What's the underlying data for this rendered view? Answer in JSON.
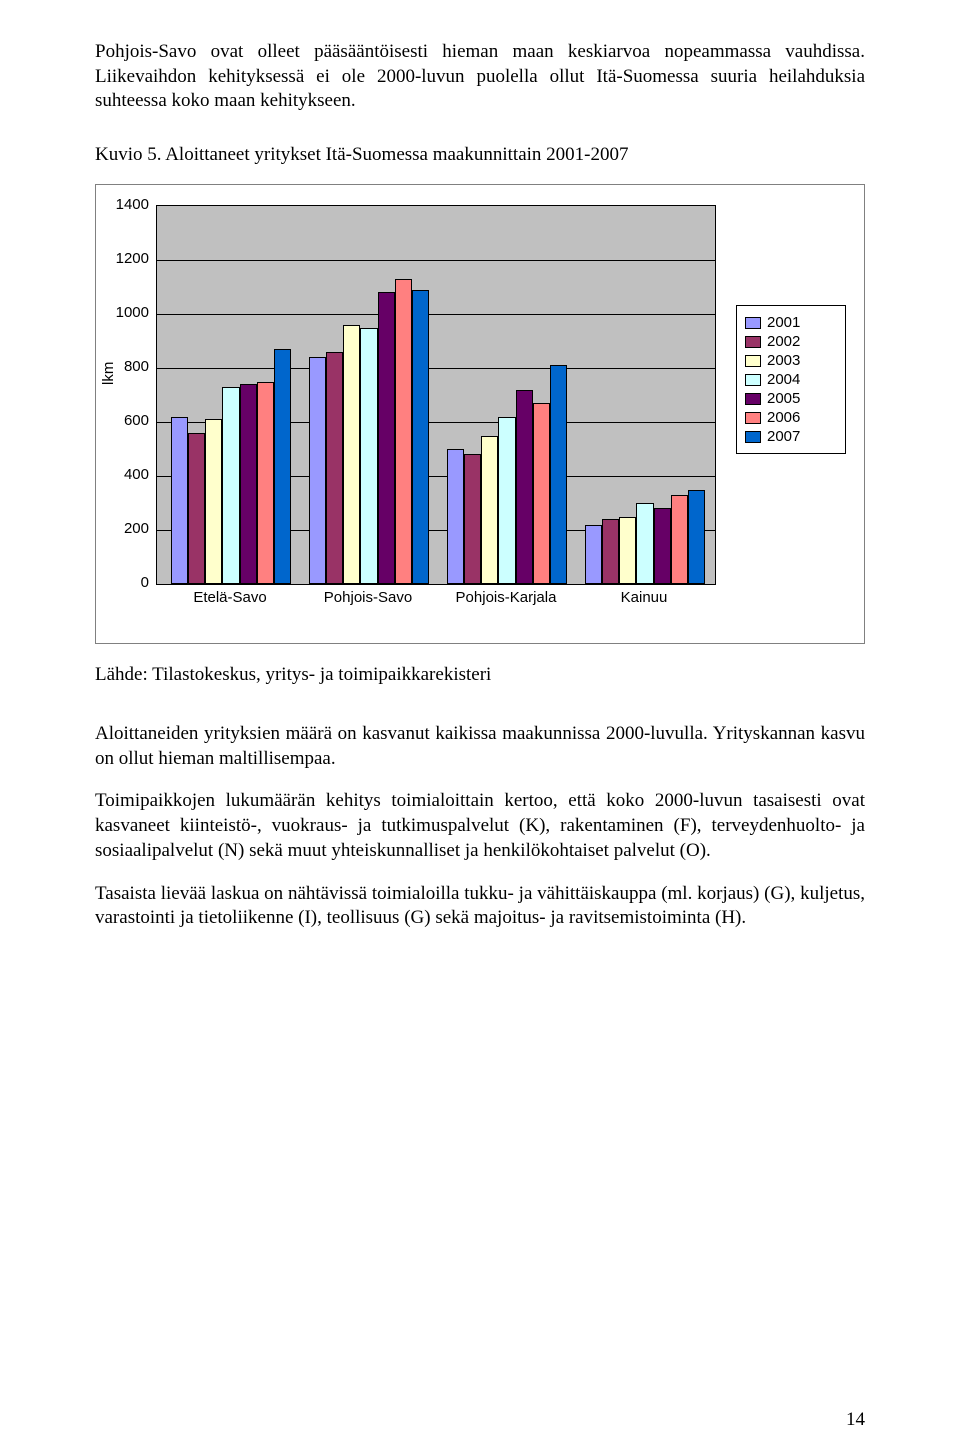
{
  "intro_para": "Pohjois-Savo ovat olleet pääsääntöisesti hieman maan keskiarvoa nopeammassa vauhdissa. Liikevaihdon kehityksessä ei ole 2000-luvun puolella ollut Itä-Suomessa suuria heilahduksia suhteessa koko maan kehitykseen.",
  "caption": "Kuvio 5. Aloittaneet yritykset Itä-Suomessa maakunnittain 2001-2007",
  "chart": {
    "type": "bar",
    "ylabel": "lkm",
    "ymin": 0,
    "ymax": 1400,
    "ytick_step": 200,
    "plot_background": "#c0c0c0",
    "grid_color": "#000000",
    "categories": [
      "Etelä-Savo",
      "Pohjois-Savo",
      "Pohjois-Karjala",
      "Kainuu"
    ],
    "series": [
      {
        "name": "2001",
        "color": "#9999ff",
        "values": [
          620,
          840,
          500,
          220
        ]
      },
      {
        "name": "2002",
        "color": "#993366",
        "values": [
          560,
          860,
          480,
          240
        ]
      },
      {
        "name": "2003",
        "color": "#ffffcc",
        "values": [
          610,
          960,
          550,
          250
        ]
      },
      {
        "name": "2004",
        "color": "#ccffff",
        "values": [
          730,
          950,
          620,
          300
        ]
      },
      {
        "name": "2005",
        "color": "#660066",
        "values": [
          740,
          1080,
          720,
          280
        ]
      },
      {
        "name": "2006",
        "color": "#ff8080",
        "values": [
          750,
          1130,
          670,
          330
        ]
      },
      {
        "name": "2007",
        "color": "#0066cc",
        "values": [
          870,
          1090,
          810,
          350
        ]
      }
    ],
    "font_family": "Arial",
    "tick_fontsize": 15,
    "bar_border": "#000000",
    "group_width": 120,
    "group_gap": 18,
    "first_group_left": 14
  },
  "source": "Lähde: Tilastokeskus, yritys- ja toimipaikkarekisteri",
  "para1": "Aloittaneiden yrityksien määrä on kasvanut kaikissa maakunnissa 2000-luvulla. Yrityskannan kasvu on ollut hieman maltillisempaa.",
  "para2": "Toimipaikkojen lukumäärän kehitys toimialoittain kertoo, että koko 2000-luvun tasaisesti ovat kasvaneet kiinteistö-, vuokraus- ja tutkimuspalvelut (K), rakentaminen (F), terveydenhuolto- ja sosiaalipalvelut (N) sekä muut yhteiskunnalliset ja henkilökohtaiset palvelut (O).",
  "para3": "Tasaista lievää laskua on nähtävissä toimialoilla tukku- ja vähittäiskauppa (ml. korjaus) (G), kuljetus, varastointi ja tietoliikenne (I), teollisuus (G) sekä majoitus- ja ravitsemistoiminta (H).",
  "page_number": "14"
}
